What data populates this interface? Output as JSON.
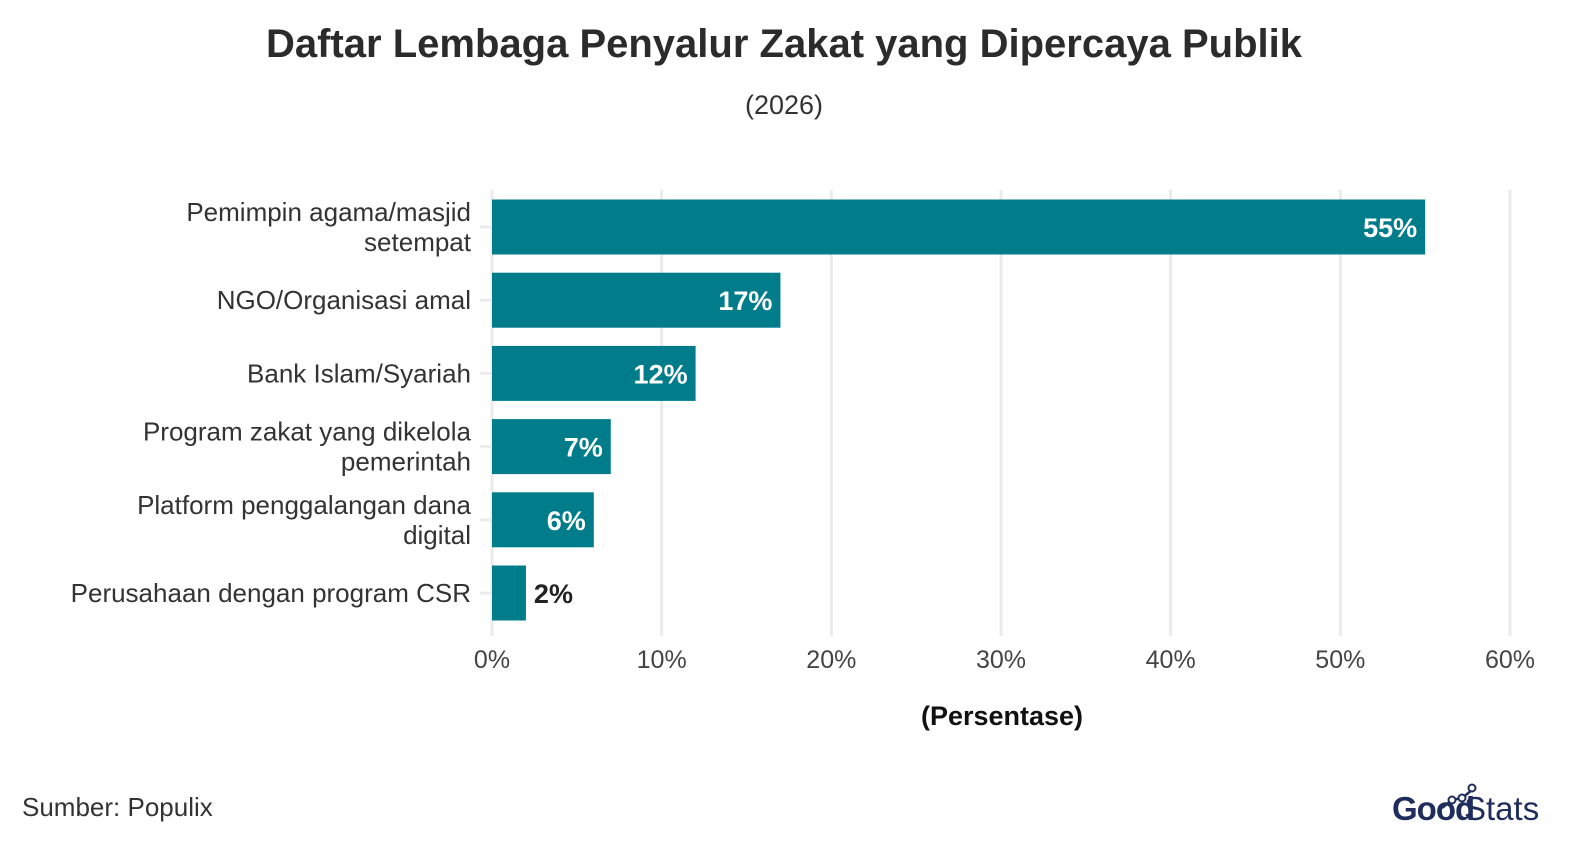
{
  "chart_data": {
    "type": "bar",
    "orientation": "horizontal",
    "title": "Daftar Lembaga Penyalur Zakat yang Dipercaya Publik",
    "subtitle": "(2026)",
    "categories": [
      [
        "Pemimpin agama/masjid",
        "setempat"
      ],
      [
        "NGO/Organisasi amal"
      ],
      [
        "Bank Islam/Syariah"
      ],
      [
        "Program zakat yang dikelola",
        "pemerintah"
      ],
      [
        "Platform penggalangan dana",
        "digital"
      ],
      [
        "Perusahaan dengan program CSR"
      ]
    ],
    "values": [
      55,
      17,
      12,
      7,
      6,
      2
    ],
    "data_labels": [
      "55%",
      "17%",
      "12%",
      "7%",
      "6%",
      "2%"
    ],
    "xlabel": "(Persentase)",
    "ylabel": "",
    "xlim": [
      0,
      60
    ],
    "xticks": [
      0,
      10,
      20,
      30,
      40,
      50,
      60
    ],
    "xtick_labels": [
      "0%",
      "10%",
      "20%",
      "30%",
      "40%",
      "50%",
      "60%"
    ],
    "grid": true,
    "bar_color": "#007c8a"
  },
  "source": "Sumber: Populix",
  "logo": {
    "part1": "Good",
    "part2": "Stats"
  }
}
